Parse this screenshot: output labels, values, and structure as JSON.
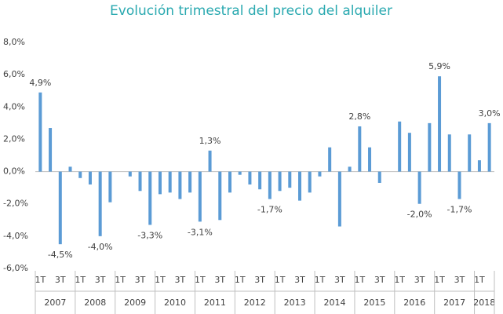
{
  "chart_data": {
    "type": "bar",
    "title": "Evolución trimestral del precio del alquiler",
    "color": "#5b9bd5",
    "groups": [
      {
        "label": "2007",
        "categories": [
          "1T",
          null,
          "3T",
          null
        ]
      },
      {
        "label": "2008",
        "categories": [
          "1T",
          null,
          "3T",
          null
        ]
      },
      {
        "label": "2009",
        "categories": [
          "1T",
          null,
          "3T",
          null
        ]
      },
      {
        "label": "2010",
        "categories": [
          "1T",
          null,
          "3T",
          null
        ]
      },
      {
        "label": "2011",
        "categories": [
          "1T",
          null,
          "3T",
          null
        ]
      },
      {
        "label": "2012",
        "categories": [
          "1T",
          null,
          "3T",
          null
        ]
      },
      {
        "label": "2013",
        "categories": [
          "1T",
          null,
          "3T",
          null
        ]
      },
      {
        "label": "2014",
        "categories": [
          "1T",
          null,
          "3T",
          null
        ]
      },
      {
        "label": "2015",
        "categories": [
          "1T",
          null,
          "3T",
          null
        ]
      },
      {
        "label": "2016",
        "categories": [
          "1T",
          null,
          "3T",
          null
        ]
      },
      {
        "label": "2017",
        "categories": [
          "1T",
          null,
          "3T",
          null
        ]
      },
      {
        "label": "2018",
        "categories": [
          "1T",
          null
        ]
      }
    ],
    "values": [
      4.9,
      2.7,
      -4.5,
      0.3,
      -0.4,
      -0.8,
      -4.0,
      -1.9,
      0,
      -0.3,
      -1.2,
      -3.3,
      -1.4,
      -1.3,
      -1.7,
      -1.3,
      -3.1,
      1.3,
      -3.0,
      -1.3,
      -0.2,
      -0.8,
      -1.1,
      -1.7,
      -1.2,
      -1.0,
      -1.8,
      -1.3,
      -0.3,
      1.5,
      -3.4,
      0.3,
      2.8,
      1.5,
      -0.7,
      0,
      3.1,
      2.4,
      -2.0,
      3.0,
      5.9,
      2.3,
      -1.7,
      2.3,
      0.7,
      3.0
    ],
    "value_labels": [
      "4,9%",
      null,
      "-4,5%",
      null,
      null,
      null,
      "-4,0%",
      null,
      null,
      null,
      null,
      "-3,3%",
      null,
      null,
      null,
      null,
      "-3,1%",
      "1,3%",
      null,
      null,
      null,
      null,
      null,
      "-1,7%",
      null,
      null,
      null,
      null,
      null,
      null,
      null,
      null,
      "2,8%",
      null,
      null,
      null,
      null,
      null,
      "-2,0%",
      null,
      "5,9%",
      null,
      "-1,7%",
      null,
      null,
      "3,0%"
    ],
    "ylim": [
      -6,
      8
    ],
    "yticks": [
      {
        "value": -6,
        "label": "-6,0%"
      },
      {
        "value": -4,
        "label": "-4,0%"
      },
      {
        "value": -2,
        "label": "-2,0%"
      },
      {
        "value": 0,
        "label": "0,0%"
      },
      {
        "value": 2,
        "label": "2,0%"
      },
      {
        "value": 4,
        "label": "4,0%"
      },
      {
        "value": 6,
        "label": "6,0%"
      },
      {
        "value": 8,
        "label": "8,0%"
      }
    ],
    "grid": false
  }
}
